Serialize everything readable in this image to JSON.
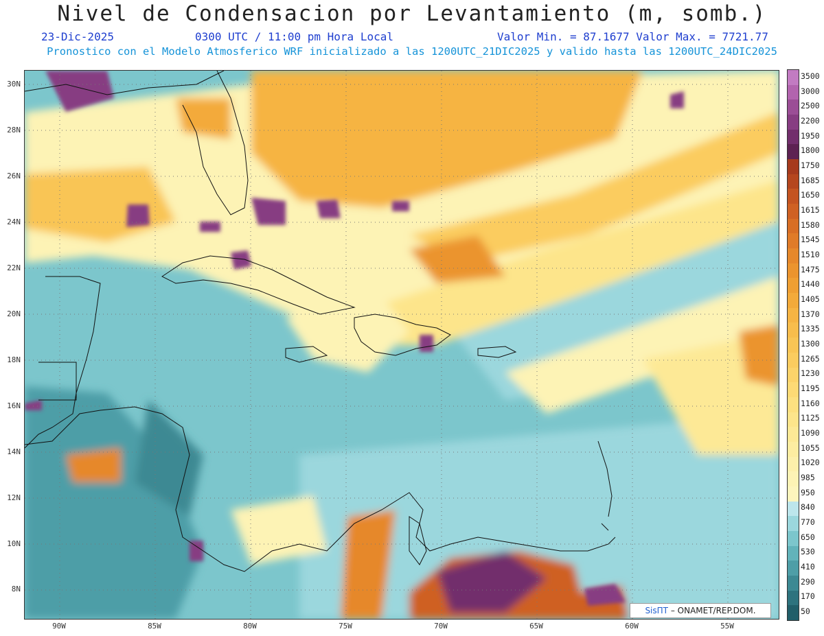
{
  "header": {
    "title": "Nivel de Condensacion por Levantamiento (m, somb.)",
    "date": "23-Dic-2025",
    "time": "0300 UTC / 11:00 pm Hora Local",
    "value_range": "Valor Min. = 87.1677  Valor Max. = 7721.77",
    "model_info": "Pronostico con el Modelo Atmosferico WRF inicializado a las 1200UTC_21DIC2025 y valido hasta las  1200UTC_24DIC2025"
  },
  "axes": {
    "lat_labels": [
      "30N",
      "28N",
      "26N",
      "24N",
      "22N",
      "20N",
      "18N",
      "16N",
      "14N",
      "12N",
      "10N",
      "8N"
    ],
    "lon_labels": [
      "90W",
      "85W",
      "80W",
      "75W",
      "70W",
      "65W",
      "60W",
      "55W"
    ]
  },
  "legend": {
    "levels": [
      "3500",
      "3000",
      "2500",
      "2200",
      "1950",
      "1800",
      "1750",
      "1685",
      "1650",
      "1615",
      "1580",
      "1545",
      "1510",
      "1475",
      "1440",
      "1405",
      "1370",
      "1335",
      "1300",
      "1265",
      "1230",
      "1195",
      "1160",
      "1125",
      "1090",
      "1055",
      "1020",
      "985",
      "950",
      "840",
      "770",
      "650",
      "530",
      "410",
      "290",
      "170",
      "50"
    ],
    "colors": [
      "#c27bc2",
      "#b264ae",
      "#9b4e96",
      "#873d82",
      "#722f6c",
      "#5d2252",
      "#a63a1d",
      "#b5461e",
      "#c45421",
      "#cf6123",
      "#d86e25",
      "#e07b28",
      "#e6882b",
      "#eb942e",
      "#ef9f33",
      "#f3aa3a",
      "#f6b443",
      "#f8bd4c",
      "#f9c555",
      "#fbcc5f",
      "#fcd36a",
      "#fdda75",
      "#fde080",
      "#fde58b",
      "#fde996",
      "#fdeda1",
      "#fdf0ab",
      "#fdf3b5",
      "#fdf5bd",
      "#bde6ec",
      "#9bd7dd",
      "#7cc6cc",
      "#62b3ba",
      "#4e9ea7",
      "#3d8993",
      "#2e737e",
      "#215e69"
    ]
  },
  "credit": {
    "symbol": "SisПT",
    "text": "– ONAMET/REP.DOM."
  }
}
